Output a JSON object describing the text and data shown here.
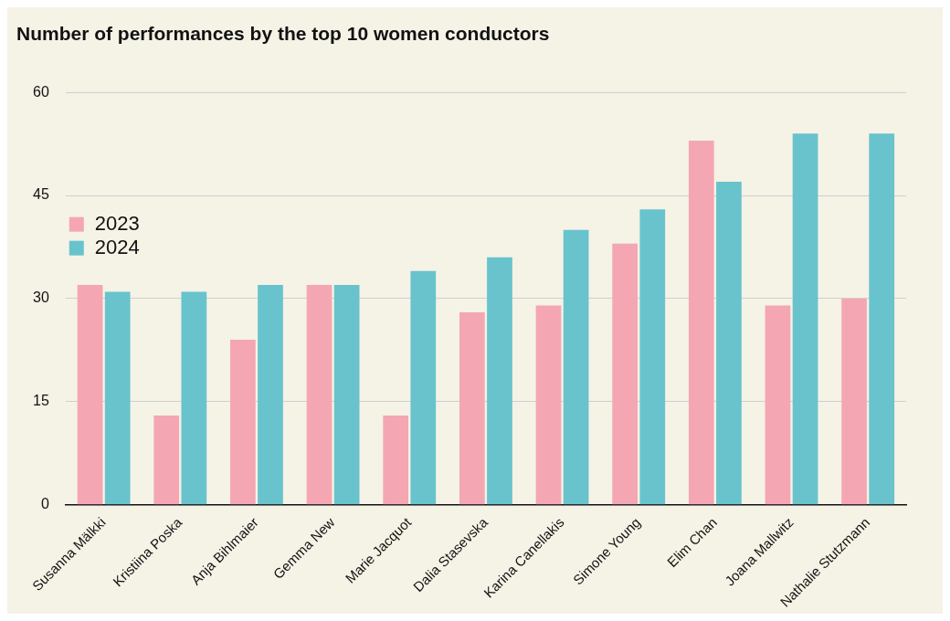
{
  "chart_data": {
    "type": "bar",
    "title": "Number of performances by the top 10 women conductors",
    "categories": [
      "Susanna Mälkki",
      "Kristiina Poska",
      "Anja Bihlmaier",
      "Gemma New",
      "Marie Jacquot",
      "Dalia Stasevska",
      "Karina Canellakis",
      "Simone Young",
      "Elim Chan",
      "Joana Mallwitz",
      "Nathalie Stutzmann"
    ],
    "series": [
      {
        "name": "2023",
        "color": "#f4a7b3",
        "values": [
          32,
          13,
          24,
          32,
          13,
          28,
          29,
          38,
          53,
          29,
          30
        ]
      },
      {
        "name": "2024",
        "color": "#68c3cc",
        "values": [
          31,
          31,
          32,
          32,
          34,
          36,
          40,
          43,
          47,
          54,
          54
        ]
      }
    ],
    "ylim": [
      0,
      60
    ],
    "yticks": [
      0,
      15,
      30,
      45,
      60
    ],
    "grid": "y",
    "legend": "left"
  }
}
